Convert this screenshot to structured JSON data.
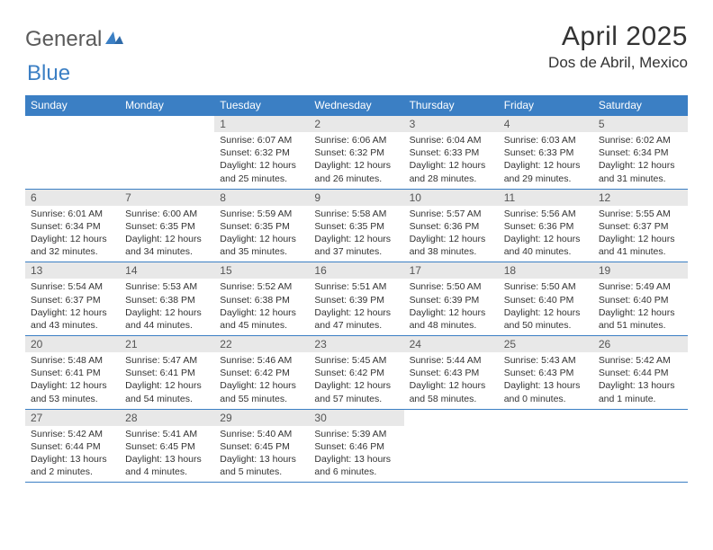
{
  "logo": {
    "general": "General",
    "blue": "Blue"
  },
  "title": "April 2025",
  "location": "Dos de Abril, Mexico",
  "colors": {
    "header_bg": "#3b7fc4",
    "header_text": "#ffffff",
    "daynum_bg": "#e8e8e8",
    "body_text": "#333333",
    "logo_gray": "#5a5a5a",
    "logo_blue": "#3b7fc4",
    "row_border": "#3b7fc4"
  },
  "typography": {
    "title_fontsize": 30,
    "location_fontsize": 17,
    "header_fontsize": 12,
    "daynum_fontsize": 12,
    "body_fontsize": 10.5
  },
  "layout": {
    "columns": 7,
    "rows": 5,
    "first_day_column_index": 2
  },
  "weekdays": [
    "Sunday",
    "Monday",
    "Tuesday",
    "Wednesday",
    "Thursday",
    "Friday",
    "Saturday"
  ],
  "days": [
    {
      "n": 1,
      "sunrise": "6:07 AM",
      "sunset": "6:32 PM",
      "daylight": "12 hours and 25 minutes."
    },
    {
      "n": 2,
      "sunrise": "6:06 AM",
      "sunset": "6:32 PM",
      "daylight": "12 hours and 26 minutes."
    },
    {
      "n": 3,
      "sunrise": "6:04 AM",
      "sunset": "6:33 PM",
      "daylight": "12 hours and 28 minutes."
    },
    {
      "n": 4,
      "sunrise": "6:03 AM",
      "sunset": "6:33 PM",
      "daylight": "12 hours and 29 minutes."
    },
    {
      "n": 5,
      "sunrise": "6:02 AM",
      "sunset": "6:34 PM",
      "daylight": "12 hours and 31 minutes."
    },
    {
      "n": 6,
      "sunrise": "6:01 AM",
      "sunset": "6:34 PM",
      "daylight": "12 hours and 32 minutes."
    },
    {
      "n": 7,
      "sunrise": "6:00 AM",
      "sunset": "6:35 PM",
      "daylight": "12 hours and 34 minutes."
    },
    {
      "n": 8,
      "sunrise": "5:59 AM",
      "sunset": "6:35 PM",
      "daylight": "12 hours and 35 minutes."
    },
    {
      "n": 9,
      "sunrise": "5:58 AM",
      "sunset": "6:35 PM",
      "daylight": "12 hours and 37 minutes."
    },
    {
      "n": 10,
      "sunrise": "5:57 AM",
      "sunset": "6:36 PM",
      "daylight": "12 hours and 38 minutes."
    },
    {
      "n": 11,
      "sunrise": "5:56 AM",
      "sunset": "6:36 PM",
      "daylight": "12 hours and 40 minutes."
    },
    {
      "n": 12,
      "sunrise": "5:55 AM",
      "sunset": "6:37 PM",
      "daylight": "12 hours and 41 minutes."
    },
    {
      "n": 13,
      "sunrise": "5:54 AM",
      "sunset": "6:37 PM",
      "daylight": "12 hours and 43 minutes."
    },
    {
      "n": 14,
      "sunrise": "5:53 AM",
      "sunset": "6:38 PM",
      "daylight": "12 hours and 44 minutes."
    },
    {
      "n": 15,
      "sunrise": "5:52 AM",
      "sunset": "6:38 PM",
      "daylight": "12 hours and 45 minutes."
    },
    {
      "n": 16,
      "sunrise": "5:51 AM",
      "sunset": "6:39 PM",
      "daylight": "12 hours and 47 minutes."
    },
    {
      "n": 17,
      "sunrise": "5:50 AM",
      "sunset": "6:39 PM",
      "daylight": "12 hours and 48 minutes."
    },
    {
      "n": 18,
      "sunrise": "5:50 AM",
      "sunset": "6:40 PM",
      "daylight": "12 hours and 50 minutes."
    },
    {
      "n": 19,
      "sunrise": "5:49 AM",
      "sunset": "6:40 PM",
      "daylight": "12 hours and 51 minutes."
    },
    {
      "n": 20,
      "sunrise": "5:48 AM",
      "sunset": "6:41 PM",
      "daylight": "12 hours and 53 minutes."
    },
    {
      "n": 21,
      "sunrise": "5:47 AM",
      "sunset": "6:41 PM",
      "daylight": "12 hours and 54 minutes."
    },
    {
      "n": 22,
      "sunrise": "5:46 AM",
      "sunset": "6:42 PM",
      "daylight": "12 hours and 55 minutes."
    },
    {
      "n": 23,
      "sunrise": "5:45 AM",
      "sunset": "6:42 PM",
      "daylight": "12 hours and 57 minutes."
    },
    {
      "n": 24,
      "sunrise": "5:44 AM",
      "sunset": "6:43 PM",
      "daylight": "12 hours and 58 minutes."
    },
    {
      "n": 25,
      "sunrise": "5:43 AM",
      "sunset": "6:43 PM",
      "daylight": "13 hours and 0 minutes."
    },
    {
      "n": 26,
      "sunrise": "5:42 AM",
      "sunset": "6:44 PM",
      "daylight": "13 hours and 1 minute."
    },
    {
      "n": 27,
      "sunrise": "5:42 AM",
      "sunset": "6:44 PM",
      "daylight": "13 hours and 2 minutes."
    },
    {
      "n": 28,
      "sunrise": "5:41 AM",
      "sunset": "6:45 PM",
      "daylight": "13 hours and 4 minutes."
    },
    {
      "n": 29,
      "sunrise": "5:40 AM",
      "sunset": "6:45 PM",
      "daylight": "13 hours and 5 minutes."
    },
    {
      "n": 30,
      "sunrise": "5:39 AM",
      "sunset": "6:46 PM",
      "daylight": "13 hours and 6 minutes."
    }
  ],
  "labels": {
    "sunrise_prefix": "Sunrise: ",
    "sunset_prefix": "Sunset: ",
    "daylight_prefix": "Daylight: "
  }
}
